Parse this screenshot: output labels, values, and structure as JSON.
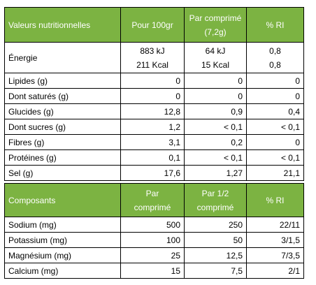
{
  "nutrition": {
    "headers": [
      "Valeurs nutritionnelles",
      "Pour 100gr",
      "Par comprimé",
      "(7,2g)",
      "% RI"
    ],
    "energy": {
      "label": "Énergie",
      "per100_kj": "883 kJ",
      "per100_kcal": "211 Kcal",
      "perTab_kj": "64 kJ",
      "perTab_kcal": "15 Kcal",
      "ri_kj": "0,8",
      "ri_kcal": "0,8"
    },
    "rows": [
      {
        "label": "Lipides (g)",
        "per100": "0",
        "perTab": "0",
        "ri": "0"
      },
      {
        "label": "Dont saturés (g)",
        "per100": "0",
        "perTab": "0",
        "ri": "0"
      },
      {
        "label": "Glucides (g)",
        "per100": "12,8",
        "perTab": "0,9",
        "ri": "0,4"
      },
      {
        "label": "Dont sucres (g)",
        "per100": "1,2",
        "perTab": "< 0,1",
        "ri": "< 0,1"
      },
      {
        "label": "Fibres (g)",
        "per100": "3,1",
        "perTab": "0,2",
        "ri": "0"
      },
      {
        "label": "Protéines (g)",
        "per100": "0,1",
        "perTab": "< 0,1",
        "ri": "< 0,1"
      },
      {
        "label": "Sel (g)",
        "per100": "17,6",
        "perTab": "1,27",
        "ri": "21,1"
      }
    ]
  },
  "composants": {
    "headers": [
      "Composants",
      "Par",
      "comprimé",
      "Par 1/2",
      "comprimé",
      "% RI"
    ],
    "rows": [
      {
        "label": "Sodium (mg)",
        "perTab": "500",
        "perHalf": "250",
        "ri": "22/11"
      },
      {
        "label": "Potassium (mg)",
        "perTab": "100",
        "perHalf": "50",
        "ri": "3/1,5"
      },
      {
        "label": "Magnésium (mg)",
        "perTab": "25",
        "perHalf": "12,5",
        "ri": "7/3,5"
      },
      {
        "label": "Calcium (mg)",
        "perTab": "15",
        "perHalf": "7,5",
        "ri": "2/1"
      }
    ]
  },
  "colors": {
    "header_bg": "#7cb342",
    "header_text": "#ffffff",
    "border": "#000000"
  }
}
